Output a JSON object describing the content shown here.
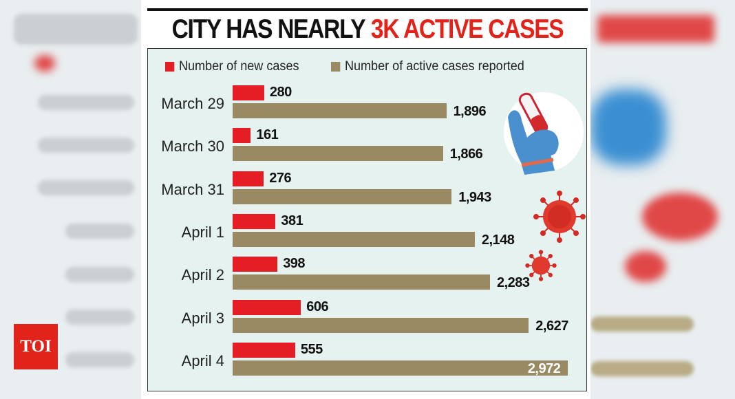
{
  "title": {
    "part1": "CITY HAS NEARLY",
    "part2": "3K ACTIVE CASES"
  },
  "badge": "TOI",
  "colors": {
    "new": "#e51e25",
    "active": "#9a8a63",
    "panel": "#e5f2ef",
    "accent": "#e2231a"
  },
  "chart_data": {
    "type": "bar",
    "orientation": "horizontal",
    "categories": [
      "March 29",
      "March 30",
      "March 31",
      "April 1",
      "April 2",
      "April 3",
      "April 4"
    ],
    "series": [
      {
        "name": "Number of new cases",
        "values": [
          280,
          161,
          276,
          381,
          398,
          606,
          555
        ],
        "labels": [
          "280",
          "161",
          "276",
          "381",
          "398",
          "606",
          "555"
        ]
      },
      {
        "name": "Number of active cases reported",
        "values": [
          1896,
          1866,
          1943,
          2148,
          2283,
          2627,
          2972
        ],
        "labels": [
          "1,896",
          "1,866",
          "1,943",
          "2,148",
          "2,283",
          "2,627",
          "2,972"
        ]
      }
    ],
    "legend": "top-left"
  }
}
